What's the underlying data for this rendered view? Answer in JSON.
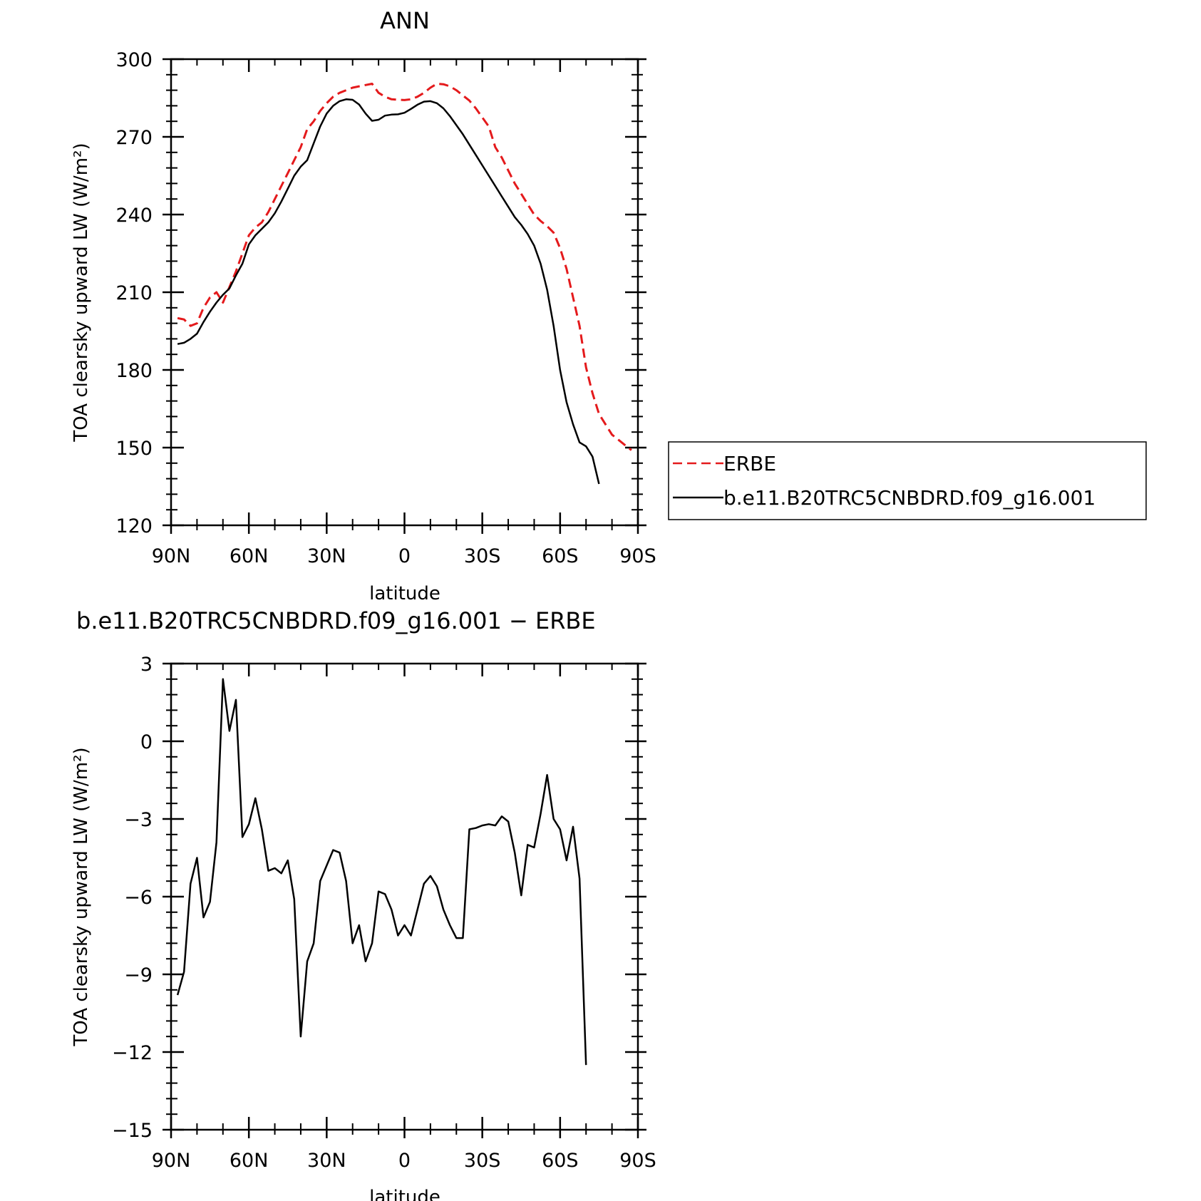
{
  "chart_data": [
    {
      "type": "line",
      "title": "ANN",
      "xlabel": "latitude",
      "ylabel": "TOA clearsky upward LW (W/m²)",
      "xlim": [
        90,
        -90
      ],
      "ylim": [
        120,
        300
      ],
      "xticks": [
        {
          "value": 90,
          "label": "90N"
        },
        {
          "value": 60,
          "label": "60N"
        },
        {
          "value": 30,
          "label": "30N"
        },
        {
          "value": 0,
          "label": "0"
        },
        {
          "value": -30,
          "label": "30S"
        },
        {
          "value": -60,
          "label": "60S"
        },
        {
          "value": -90,
          "label": "90S"
        }
      ],
      "yticks": [
        {
          "value": 120,
          "label": "120"
        },
        {
          "value": 150,
          "label": "150"
        },
        {
          "value": 180,
          "label": "180"
        },
        {
          "value": 210,
          "label": "210"
        },
        {
          "value": 240,
          "label": "240"
        },
        {
          "value": 270,
          "label": "270"
        },
        {
          "value": 300,
          "label": "300"
        }
      ],
      "legend": {
        "placement": "right"
      },
      "series": [
        {
          "name": "ERBE",
          "color": "#e41a1c",
          "dash": "dashed",
          "points": [
            [
              87.5,
              200
            ],
            [
              85,
              199.5
            ],
            [
              82.5,
              197
            ],
            [
              80,
              198
            ],
            [
              77.5,
              204
            ],
            [
              75,
              208
            ],
            [
              72.5,
              210
            ],
            [
              70,
              206
            ],
            [
              67.5,
              212
            ],
            [
              65,
              218
            ],
            [
              62.5,
              225
            ],
            [
              60,
              232
            ],
            [
              57.5,
              235
            ],
            [
              55,
              237
            ],
            [
              52.5,
              241
            ],
            [
              50,
              246
            ],
            [
              47.5,
              251
            ],
            [
              45,
              256
            ],
            [
              42.5,
              261
            ],
            [
              40,
              266
            ],
            [
              37.5,
              273
            ],
            [
              35,
              276
            ],
            [
              32.5,
              280
            ],
            [
              30,
              283
            ],
            [
              27.5,
              285.5
            ],
            [
              25,
              287
            ],
            [
              22.5,
              288
            ],
            [
              20,
              289
            ],
            [
              17.5,
              289.5
            ],
            [
              15,
              290
            ],
            [
              12.5,
              290.5
            ],
            [
              10,
              287
            ],
            [
              7.5,
              285.5
            ],
            [
              5,
              284.5
            ],
            [
              2.5,
              284.3
            ],
            [
              0,
              284.2
            ],
            [
              -2.5,
              284.5
            ],
            [
              -5,
              285.5
            ],
            [
              -7.5,
              287
            ],
            [
              -10,
              289
            ],
            [
              -12.5,
              290.5
            ],
            [
              -15,
              290.3
            ],
            [
              -17.5,
              289.5
            ],
            [
              -20,
              288
            ],
            [
              -22.5,
              286
            ],
            [
              -25,
              284
            ],
            [
              -27.5,
              281
            ],
            [
              -30,
              277.5
            ],
            [
              -32.5,
              274
            ],
            [
              -35,
              266
            ],
            [
              -37.5,
              262
            ],
            [
              -40,
              257
            ],
            [
              -42.5,
              252
            ],
            [
              -45,
              248
            ],
            [
              -47.5,
              244
            ],
            [
              -50,
              240
            ],
            [
              -52.5,
              237.5
            ],
            [
              -55,
              235.5
            ],
            [
              -57.5,
              233
            ],
            [
              -60,
              227
            ],
            [
              -62.5,
              219
            ],
            [
              -65,
              208
            ],
            [
              -67.5,
              197
            ],
            [
              -70,
              181
            ],
            [
              -72.5,
              171
            ],
            [
              -75,
              163
            ],
            [
              -77.5,
              159
            ],
            [
              -80,
              155
            ],
            [
              -82.5,
              153
            ],
            [
              -85,
              151
            ],
            [
              -87.5,
              149
            ]
          ]
        },
        {
          "name": "b.e11.B20TRC5CNBDRD.f09_g16.001",
          "color": "#000000",
          "dash": "solid",
          "points": [
            [
              87.5,
              190
            ],
            [
              85,
              190.5
            ],
            [
              82.5,
              192
            ],
            [
              80,
              194
            ],
            [
              77.5,
              198.5
            ],
            [
              75,
              202.5
            ],
            [
              72.5,
              206
            ],
            [
              70,
              209
            ],
            [
              67.5,
              211.5
            ],
            [
              65,
              216.5
            ],
            [
              62.5,
              221
            ],
            [
              60,
              228.5
            ],
            [
              57.5,
              232
            ],
            [
              55,
              234.5
            ],
            [
              52.5,
              237
            ],
            [
              50,
              240.5
            ],
            [
              47.5,
              245
            ],
            [
              45,
              250
            ],
            [
              42.5,
              255
            ],
            [
              40,
              258.5
            ],
            [
              37.5,
              261
            ],
            [
              35,
              267.5
            ],
            [
              32.5,
              274
            ],
            [
              30,
              279
            ],
            [
              27.5,
              282
            ],
            [
              25,
              283.8
            ],
            [
              22.5,
              284.5
            ],
            [
              20,
              284.3
            ],
            [
              17.5,
              282.5
            ],
            [
              15,
              279
            ],
            [
              12.5,
              276.2
            ],
            [
              10,
              276.6
            ],
            [
              7.5,
              278.2
            ],
            [
              5,
              278.6
            ],
            [
              2.5,
              278.7
            ],
            [
              0,
              279.3
            ],
            [
              -2.5,
              280.8
            ],
            [
              -5,
              282.4
            ],
            [
              -7.5,
              283.6
            ],
            [
              -10,
              283.8
            ],
            [
              -12.5,
              283
            ],
            [
              -15,
              281
            ],
            [
              -17.5,
              278
            ],
            [
              -20,
              274.5
            ],
            [
              -22.5,
              271
            ],
            [
              -25,
              267
            ],
            [
              -27.5,
              263
            ],
            [
              -30,
              259
            ],
            [
              -32.5,
              255
            ],
            [
              -35,
              251
            ],
            [
              -37.5,
              247
            ],
            [
              -40,
              243
            ],
            [
              -42.5,
              239
            ],
            [
              -45,
              236
            ],
            [
              -47.5,
              232.5
            ],
            [
              -50,
              228
            ],
            [
              -52.5,
              221
            ],
            [
              -55,
              211
            ],
            [
              -57.5,
              197
            ],
            [
              -60,
              180
            ],
            [
              -62.5,
              167.5
            ],
            [
              -65,
              159
            ],
            [
              -67.5,
              152
            ],
            [
              -70,
              150.5
            ],
            [
              -72.5,
              146.5
            ],
            [
              -75,
              136
            ]
          ]
        }
      ]
    },
    {
      "type": "line",
      "title": "b.e11.B20TRC5CNBDRD.f09_g16.001 − ERBE",
      "xlabel": "latitude",
      "ylabel": "TOA clearsky upward LW (W/m²)",
      "xlim": [
        90,
        -90
      ],
      "ylim": [
        -15,
        3
      ],
      "xticks": [
        {
          "value": 90,
          "label": "90N"
        },
        {
          "value": 60,
          "label": "60N"
        },
        {
          "value": 30,
          "label": "30N"
        },
        {
          "value": 0,
          "label": "0"
        },
        {
          "value": -30,
          "label": "30S"
        },
        {
          "value": -60,
          "label": "60S"
        },
        {
          "value": -90,
          "label": "90S"
        }
      ],
      "yticks": [
        {
          "value": -15,
          "label": "−15"
        },
        {
          "value": -12,
          "label": "−12"
        },
        {
          "value": -9,
          "label": "−9"
        },
        {
          "value": -6,
          "label": "−6"
        },
        {
          "value": -3,
          "label": "−3"
        },
        {
          "value": 0,
          "label": "0"
        },
        {
          "value": 3,
          "label": "3"
        }
      ],
      "series": [
        {
          "color": "#000000",
          "dash": "solid",
          "points": [
            [
              87.5,
              -9.8
            ],
            [
              85,
              -8.9
            ],
            [
              82.5,
              -5.5
            ],
            [
              80,
              -4.5
            ],
            [
              77.5,
              -6.8
            ],
            [
              75,
              -6.2
            ],
            [
              72.5,
              -3.9
            ],
            [
              70,
              2.4
            ],
            [
              67.5,
              0.4
            ],
            [
              65,
              1.6
            ],
            [
              62.5,
              -3.7
            ],
            [
              60,
              -3.2
            ],
            [
              57.5,
              -2.2
            ],
            [
              55,
              -3.4
            ],
            [
              52.5,
              -5
            ],
            [
              50,
              -4.9
            ],
            [
              47.5,
              -5.1
            ],
            [
              45,
              -4.6
            ],
            [
              42.5,
              -6.1
            ],
            [
              40,
              -11.4
            ],
            [
              37.5,
              -8.5
            ],
            [
              35,
              -7.8
            ],
            [
              32.5,
              -5.4
            ],
            [
              30,
              -4.8
            ],
            [
              27.5,
              -4.2
            ],
            [
              25,
              -4.3
            ],
            [
              22.5,
              -5.4
            ],
            [
              20,
              -7.8
            ],
            [
              17.5,
              -7.1
            ],
            [
              15,
              -8.5
            ],
            [
              12.5,
              -7.8
            ],
            [
              10,
              -5.8
            ],
            [
              7.5,
              -5.9
            ],
            [
              5,
              -6.5
            ],
            [
              2.5,
              -7.5
            ],
            [
              0,
              -7.1
            ],
            [
              -2.5,
              -7.5
            ],
            [
              -5,
              -6.5
            ],
            [
              -7.5,
              -5.5
            ],
            [
              -10,
              -5.2
            ],
            [
              -12.5,
              -5.6
            ],
            [
              -15,
              -6.5
            ],
            [
              -17.5,
              -7.1
            ],
            [
              -20,
              -7.6
            ],
            [
              -22.5,
              -7.6
            ],
            [
              -25,
              -3.4
            ],
            [
              -27.5,
              -3.35
            ],
            [
              -30,
              -3.25
            ],
            [
              -32.5,
              -3.2
            ],
            [
              -35,
              -3.25
            ],
            [
              -37.5,
              -2.9
            ],
            [
              -40,
              -3.1
            ],
            [
              -42.5,
              -4.3
            ],
            [
              -45,
              -5.95
            ],
            [
              -47.5,
              -4.0
            ],
            [
              -50,
              -4.1
            ],
            [
              -52.5,
              -2.8
            ],
            [
              -55,
              -1.3
            ],
            [
              -57.5,
              -3.0
            ],
            [
              -60,
              -3.4
            ],
            [
              -62.5,
              -4.6
            ],
            [
              -65,
              -3.3
            ],
            [
              -67.5,
              -5.3
            ],
            [
              -70,
              -12.5
            ]
          ]
        }
      ]
    }
  ]
}
